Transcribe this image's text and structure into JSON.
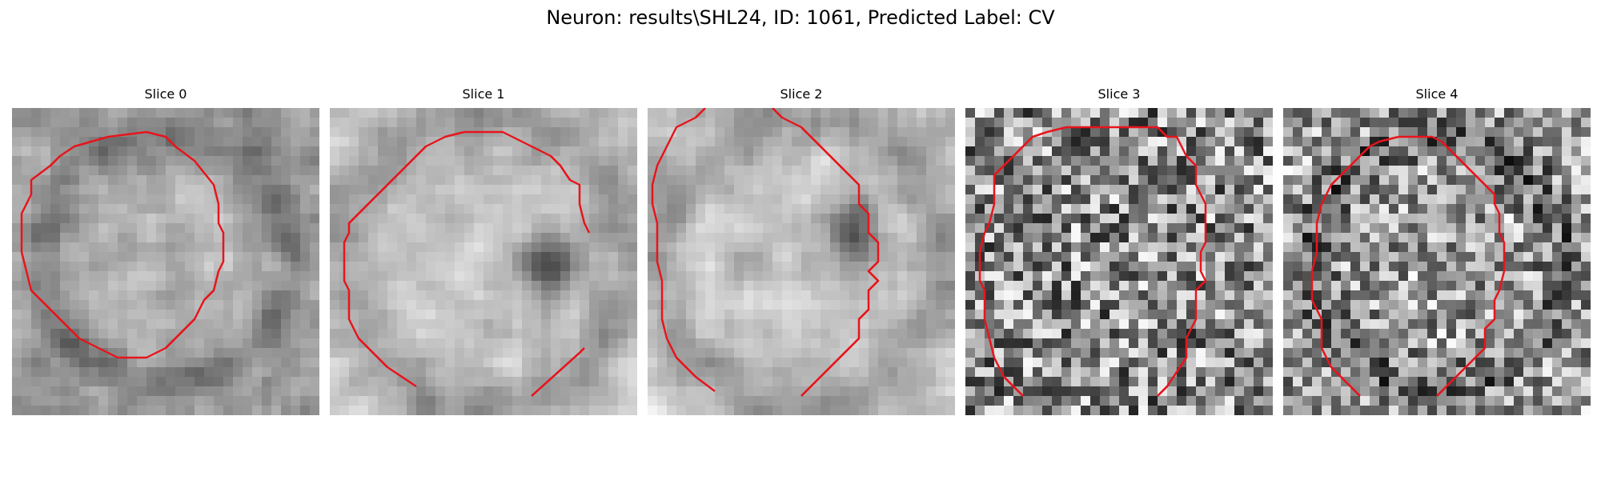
{
  "figure": {
    "title": "Neuron: results\\SHL24, ID: 1061, Predicted Label: CV"
  },
  "contour_color": "#e8141c",
  "panels": [
    {
      "title": "Slice 0",
      "texture": "ring",
      "contrast": 0.55,
      "seed": 11
    },
    {
      "title": "Slice 1",
      "texture": "bright-with-dark-spot",
      "contrast": 0.45,
      "seed": 23
    },
    {
      "title": "Slice 2",
      "texture": "bright-with-dark-spot",
      "contrast": 0.5,
      "seed": 37
    },
    {
      "title": "Slice 3",
      "texture": "noisy",
      "contrast": 0.85,
      "seed": 41
    },
    {
      "title": "Slice 4",
      "texture": "ring-noisy",
      "contrast": 0.75,
      "seed": 53
    }
  ]
}
